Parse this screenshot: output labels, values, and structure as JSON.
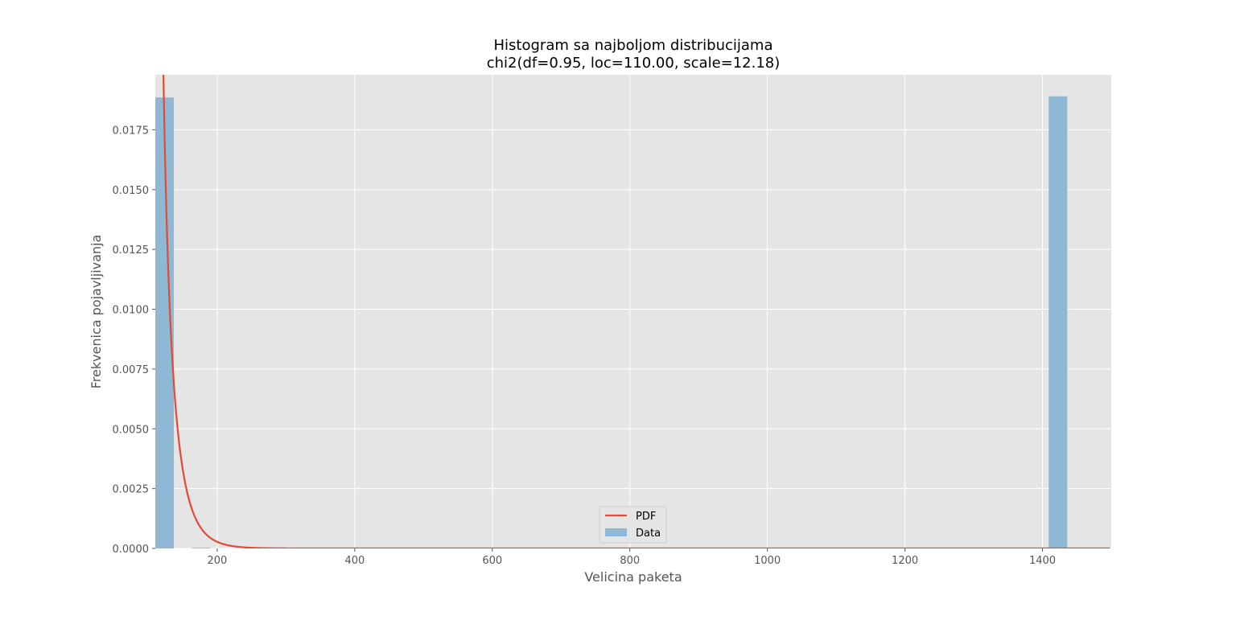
{
  "chart_data": {
    "type": "histogram",
    "title_line1": "Histogram sa najboljom distribucijama",
    "title_line2": "chi2(df=0.95, loc=110.00, scale=12.18)",
    "xlabel": "Velicina paketa",
    "ylabel": "Frekvenica pojavljivanja",
    "xlim": [
      110,
      1500
    ],
    "ylim": [
      0,
      0.0198
    ],
    "xticks": [
      200,
      400,
      600,
      800,
      1000,
      1200,
      1400
    ],
    "yticks": [
      0.0,
      0.0025,
      0.005,
      0.0075,
      0.01,
      0.0125,
      0.015,
      0.0175
    ],
    "ytick_labels": [
      "0.0000",
      "0.0025",
      "0.0050",
      "0.0075",
      "0.0100",
      "0.0125",
      "0.0150",
      "0.0175"
    ],
    "grid": true,
    "background": "#e5e5e5",
    "legend_position": "lower-center",
    "bins": [
      {
        "x0": 110,
        "x1": 137,
        "value": 0.01885
      },
      {
        "x0": 163,
        "x1": 190,
        "value": 3e-05
      },
      {
        "x0": 1409,
        "x1": 1436,
        "value": 0.0189
      }
    ],
    "series": [
      {
        "name": "PDF",
        "type": "line",
        "color": "#e24a33",
        "distribution": {
          "name": "chi2",
          "df": 0.95,
          "loc": 110.0,
          "scale": 12.18
        }
      },
      {
        "name": "Data",
        "type": "bar",
        "color": "#8fb8d4"
      }
    ]
  }
}
